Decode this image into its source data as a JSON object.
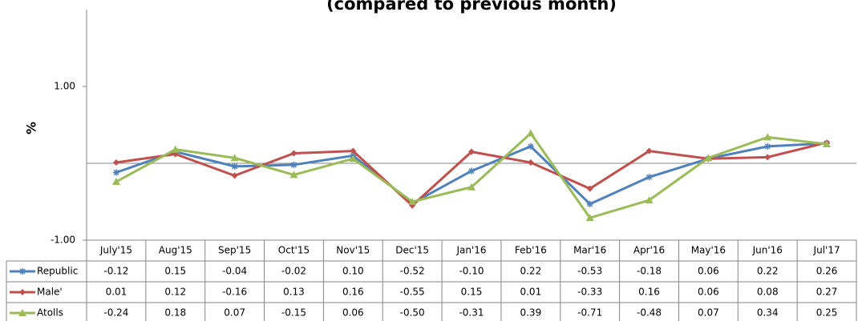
{
  "chart_data": {
    "type": "line",
    "title": "(compared to previous month)",
    "ylabel": "%",
    "categories": [
      "July'15",
      "Aug'15",
      "Sep'15",
      "Oct'15",
      "Nov'15",
      "Dec'15",
      "Jan'16",
      "Feb'16",
      "Mar'16",
      "Apr'16",
      "May'16",
      "Jun'16",
      "Jul'17"
    ],
    "ylim": [
      -1,
      2
    ],
    "yticks": [
      {
        "value": -1,
        "label": "-1.00"
      },
      {
        "value": 1,
        "label": "1.00"
      }
    ],
    "series": [
      {
        "name": "Republic",
        "color": "#4f81bd",
        "marker": "star",
        "values": [
          -0.12,
          0.15,
          -0.04,
          -0.02,
          0.1,
          -0.52,
          -0.1,
          0.22,
          -0.53,
          -0.18,
          0.06,
          0.22,
          0.26
        ],
        "value_labels": [
          "-0.12",
          "0.15",
          "-0.04",
          "-0.02",
          "0.10",
          "-0.52",
          "-0.10",
          "0.22",
          "-0.53",
          "-0.18",
          "0.06",
          "0.22",
          "0.26"
        ]
      },
      {
        "name": "Male'",
        "color": "#c0504d",
        "marker": "diamond",
        "values": [
          0.01,
          0.12,
          -0.16,
          0.13,
          0.16,
          -0.55,
          0.15,
          0.01,
          -0.33,
          0.16,
          0.06,
          0.08,
          0.27
        ],
        "value_labels": [
          "0.01",
          "0.12",
          "-0.16",
          "0.13",
          "0.16",
          "-0.55",
          "0.15",
          "0.01",
          "-0.33",
          "0.16",
          "0.06",
          "0.08",
          "0.27"
        ]
      },
      {
        "name": "Atolls",
        "color": "#9bbb59",
        "marker": "triangle",
        "values": [
          -0.24,
          0.18,
          0.07,
          -0.15,
          0.06,
          -0.5,
          -0.31,
          0.39,
          -0.71,
          -0.48,
          0.07,
          0.34,
          0.25
        ],
        "value_labels": [
          "-0.24",
          "0.18",
          "0.07",
          "-0.15",
          "0.06",
          "-0.50",
          "-0.31",
          "0.39",
          "-0.71",
          "-0.48",
          "0.07",
          "0.34",
          "0.25"
        ]
      }
    ]
  }
}
